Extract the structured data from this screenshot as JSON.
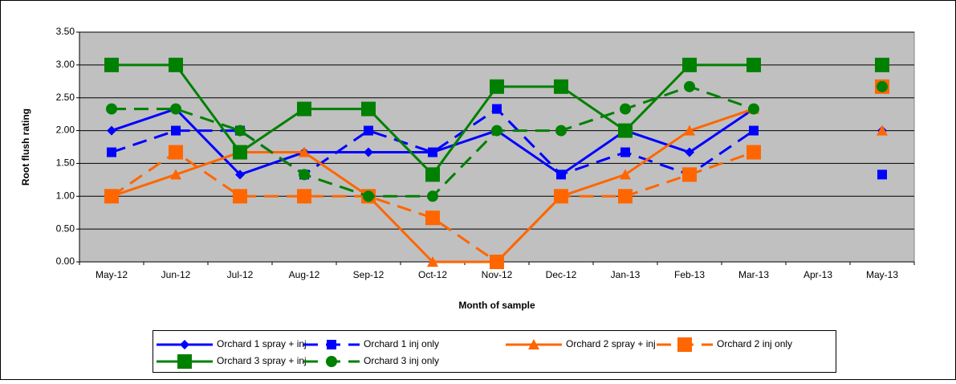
{
  "chart_data": {
    "type": "line",
    "x_label": "Month of sample",
    "y_label": "Root flush rating",
    "categories": [
      "May-12",
      "Jun-12",
      "Jul-12",
      "Aug-12",
      "Sep-12",
      "Oct-12",
      "Nov-12",
      "Dec-12",
      "Jan-13",
      "Feb-13",
      "Mar-13",
      "Apr-13",
      "May-13"
    ],
    "ylim": [
      0,
      3.5
    ],
    "yticks": [
      {
        "value": 0,
        "label": "0.00"
      },
      {
        "value": 0.5,
        "label": "0.50"
      },
      {
        "value": 1,
        "label": "1.00"
      },
      {
        "value": 1.5,
        "label": "1.50"
      },
      {
        "value": 2,
        "label": "2.00"
      },
      {
        "value": 2.5,
        "label": "2.50"
      },
      {
        "value": 3,
        "label": "3.00"
      },
      {
        "value": 3.5,
        "label": "3.50"
      }
    ],
    "grid": true,
    "legend": "bottom",
    "series": [
      {
        "name": "Orchard 1 spray + inj",
        "color": "#0000ff",
        "marker": "diamond",
        "line_style": "solid",
        "values": [
          2.0,
          2.33,
          1.33,
          1.67,
          1.67,
          1.67,
          2.0,
          1.33,
          2.0,
          1.67,
          2.33,
          null,
          2.0
        ]
      },
      {
        "name": "Orchard 1 inj only",
        "color": "#0000ff",
        "marker": "square",
        "line_style": "dashed",
        "values": [
          1.67,
          2.0,
          2.0,
          1.33,
          2.0,
          1.67,
          2.33,
          1.33,
          1.67,
          1.33,
          2.0,
          null,
          1.33
        ]
      },
      {
        "name": "Orchard 2 spray + inj",
        "color": "#ff6600",
        "marker": "triangle",
        "line_style": "solid",
        "values": [
          1.0,
          1.33,
          1.67,
          1.67,
          1.0,
          0.0,
          0.0,
          1.0,
          1.33,
          2.0,
          2.33,
          null,
          2.0
        ]
      },
      {
        "name": "Orchard 2 inj only",
        "color": "#ff6600",
        "marker": "bigsquare",
        "line_style": "dashed",
        "values": [
          1.0,
          1.67,
          1.0,
          1.0,
          1.0,
          0.67,
          0.0,
          1.0,
          1.0,
          1.33,
          1.67,
          null,
          2.67
        ]
      },
      {
        "name": "Orchard 3 spray + inj",
        "color": "#008000",
        "marker": "bigsquare",
        "line_style": "solid",
        "values": [
          3.0,
          3.0,
          1.67,
          2.33,
          2.33,
          1.33,
          2.67,
          2.67,
          2.0,
          3.0,
          3.0,
          null,
          3.0
        ]
      },
      {
        "name": "Orchard 3 inj only",
        "color": "#008000",
        "marker": "circle",
        "line_style": "dashed",
        "values": [
          2.33,
          2.33,
          2.0,
          1.33,
          1.0,
          1.0,
          2.0,
          2.0,
          2.33,
          2.67,
          2.33,
          null,
          2.67
        ]
      }
    ]
  }
}
